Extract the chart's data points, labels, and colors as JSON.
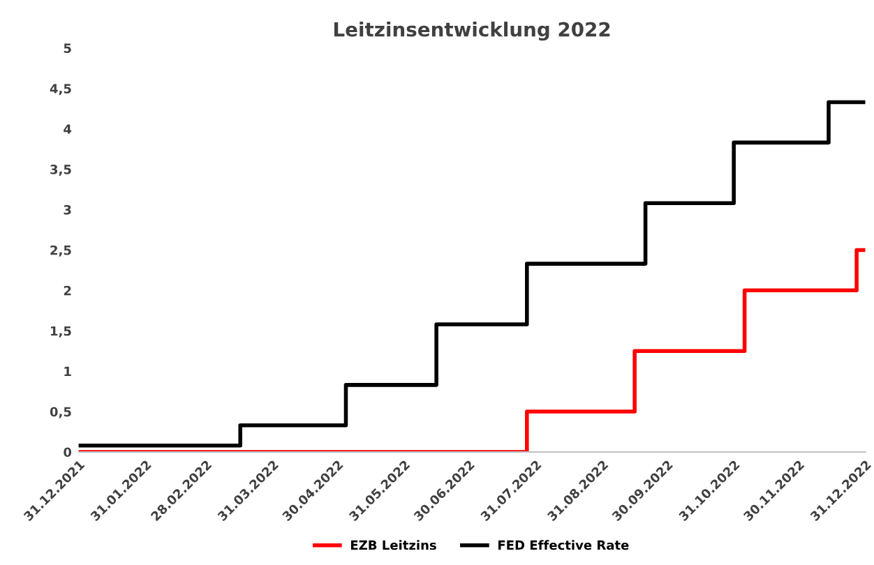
{
  "chart_data": {
    "type": "step",
    "title": "Leitzinsentwicklung 2022",
    "series": [
      {
        "name": "EZB Leitzins",
        "color": "#ff0000",
        "x": [
          "2021-12-31",
          "2022-07-27",
          "2022-09-15",
          "2022-11-05",
          "2022-12-27",
          "2022-12-31"
        ],
        "values": [
          0,
          0.5,
          1.25,
          2,
          2.5,
          2.5
        ]
      },
      {
        "name": "FED Effective Rate",
        "color": "#000000",
        "x": [
          "2021-12-31",
          "2022-03-16",
          "2022-05-04",
          "2022-06-15",
          "2022-07-27",
          "2022-09-20",
          "2022-10-31",
          "2022-12-14",
          "2022-12-31"
        ],
        "values": [
          0.08,
          0.33,
          0.83,
          1.58,
          2.33,
          3.08,
          3.83,
          4.33,
          4.33
        ]
      }
    ],
    "xlim": [
      "2021-12-31",
      "2022-12-31"
    ],
    "xticks": [
      {
        "value": "2021-12-31",
        "label": "31.12.2021"
      },
      {
        "value": "2022-01-31",
        "label": "31.01.2022"
      },
      {
        "value": "2022-02-28",
        "label": "28.02.2022"
      },
      {
        "value": "2022-03-31",
        "label": "31.03.2022"
      },
      {
        "value": "2022-04-30",
        "label": "30.04.2022"
      },
      {
        "value": "2022-05-31",
        "label": "31.05.2022"
      },
      {
        "value": "2022-06-30",
        "label": "30.06.2022"
      },
      {
        "value": "2022-07-31",
        "label": "31.07.2022"
      },
      {
        "value": "2022-08-31",
        "label": "31.08.2022"
      },
      {
        "value": "2022-09-30",
        "label": "30.09.2022"
      },
      {
        "value": "2022-10-31",
        "label": "31.10.2022"
      },
      {
        "value": "2022-11-30",
        "label": "30.11.2022"
      },
      {
        "value": "2022-12-31",
        "label": "31.12.2022"
      }
    ],
    "ylim": [
      0,
      5
    ],
    "yticks": [
      {
        "value": 0,
        "label": "0"
      },
      {
        "value": 0.5,
        "label": "0,5"
      },
      {
        "value": 1,
        "label": "1"
      },
      {
        "value": 1.5,
        "label": "1,5"
      },
      {
        "value": 2,
        "label": "2"
      },
      {
        "value": 2.5,
        "label": "2,5"
      },
      {
        "value": 3,
        "label": "3"
      },
      {
        "value": 3.5,
        "label": "3,5"
      },
      {
        "value": 4,
        "label": "4"
      },
      {
        "value": 4.5,
        "label": "4,5"
      },
      {
        "value": 5,
        "label": "5"
      }
    ],
    "grid": false,
    "legend": "bottom"
  }
}
